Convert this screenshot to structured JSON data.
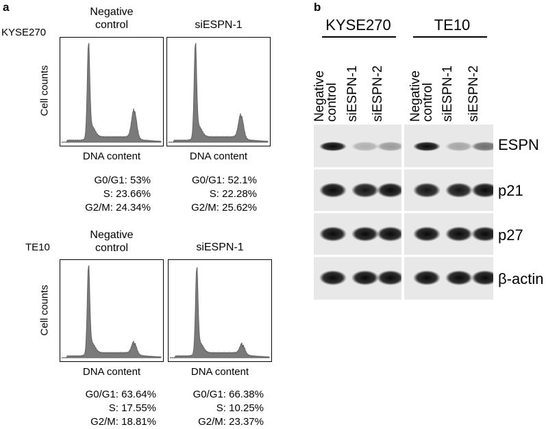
{
  "panel_a": {
    "letter": "a",
    "xlabel": "DNA content",
    "ylabel": "Cell counts",
    "lines": [
      {
        "cell_line": "KYSE270",
        "histograms": [
          {
            "condition": [
              "Negative",
              "control"
            ],
            "g0g1": "G0/G1: 53%",
            "s": "S: 23.66%",
            "g2m": "G2/M: 24.34%",
            "g1_peak": 0.92,
            "g2_peak": 0.29
          },
          {
            "condition": [
              "siESPN-1"
            ],
            "g0g1": "G0/G1: 52.1%",
            "s": "S: 22.28%",
            "g2m": "G2/M: 25.62%",
            "g1_peak": 0.92,
            "g2_peak": 0.24
          }
        ]
      },
      {
        "cell_line": "TE10",
        "histograms": [
          {
            "condition": [
              "Negative",
              "control"
            ],
            "g0g1": "G0/G1: 63.64%",
            "s": "S: 17.55%",
            "g2m": "G2/M: 18.81%",
            "g1_peak": 0.92,
            "g2_peak": 0.13
          },
          {
            "condition": [
              "siESPN-1"
            ],
            "g0g1": "G0/G1: 66.38%",
            "s": "S: 10.25%",
            "g2m": "G2/M: 23.37%",
            "g1_peak": 0.9,
            "g2_peak": 0.11
          }
        ]
      }
    ]
  },
  "panel_b": {
    "letter": "b",
    "groups": [
      "KYSE270",
      "TE10"
    ],
    "lanes": [
      [
        "Negative",
        "control"
      ],
      [
        "siESPN-1"
      ],
      [
        "siESPN-2"
      ]
    ],
    "proteins": [
      "ESPN",
      "p21",
      "p27",
      "β-actin"
    ],
    "band_intensity": {
      "ESPN": {
        "KYSE270": [
          1.0,
          0.25,
          0.35
        ],
        "TE10": [
          1.0,
          0.3,
          0.55
        ]
      },
      "p21": {
        "KYSE270": [
          1.0,
          0.95,
          1.0
        ],
        "TE10": [
          0.95,
          0.95,
          1.0
        ]
      },
      "p27": {
        "KYSE270": [
          1.0,
          1.0,
          1.0
        ],
        "TE10": [
          1.0,
          1.0,
          1.0
        ]
      },
      "β-actin": {
        "KYSE270": [
          1.0,
          1.0,
          1.0
        ],
        "TE10": [
          1.0,
          1.0,
          1.0
        ]
      }
    }
  }
}
